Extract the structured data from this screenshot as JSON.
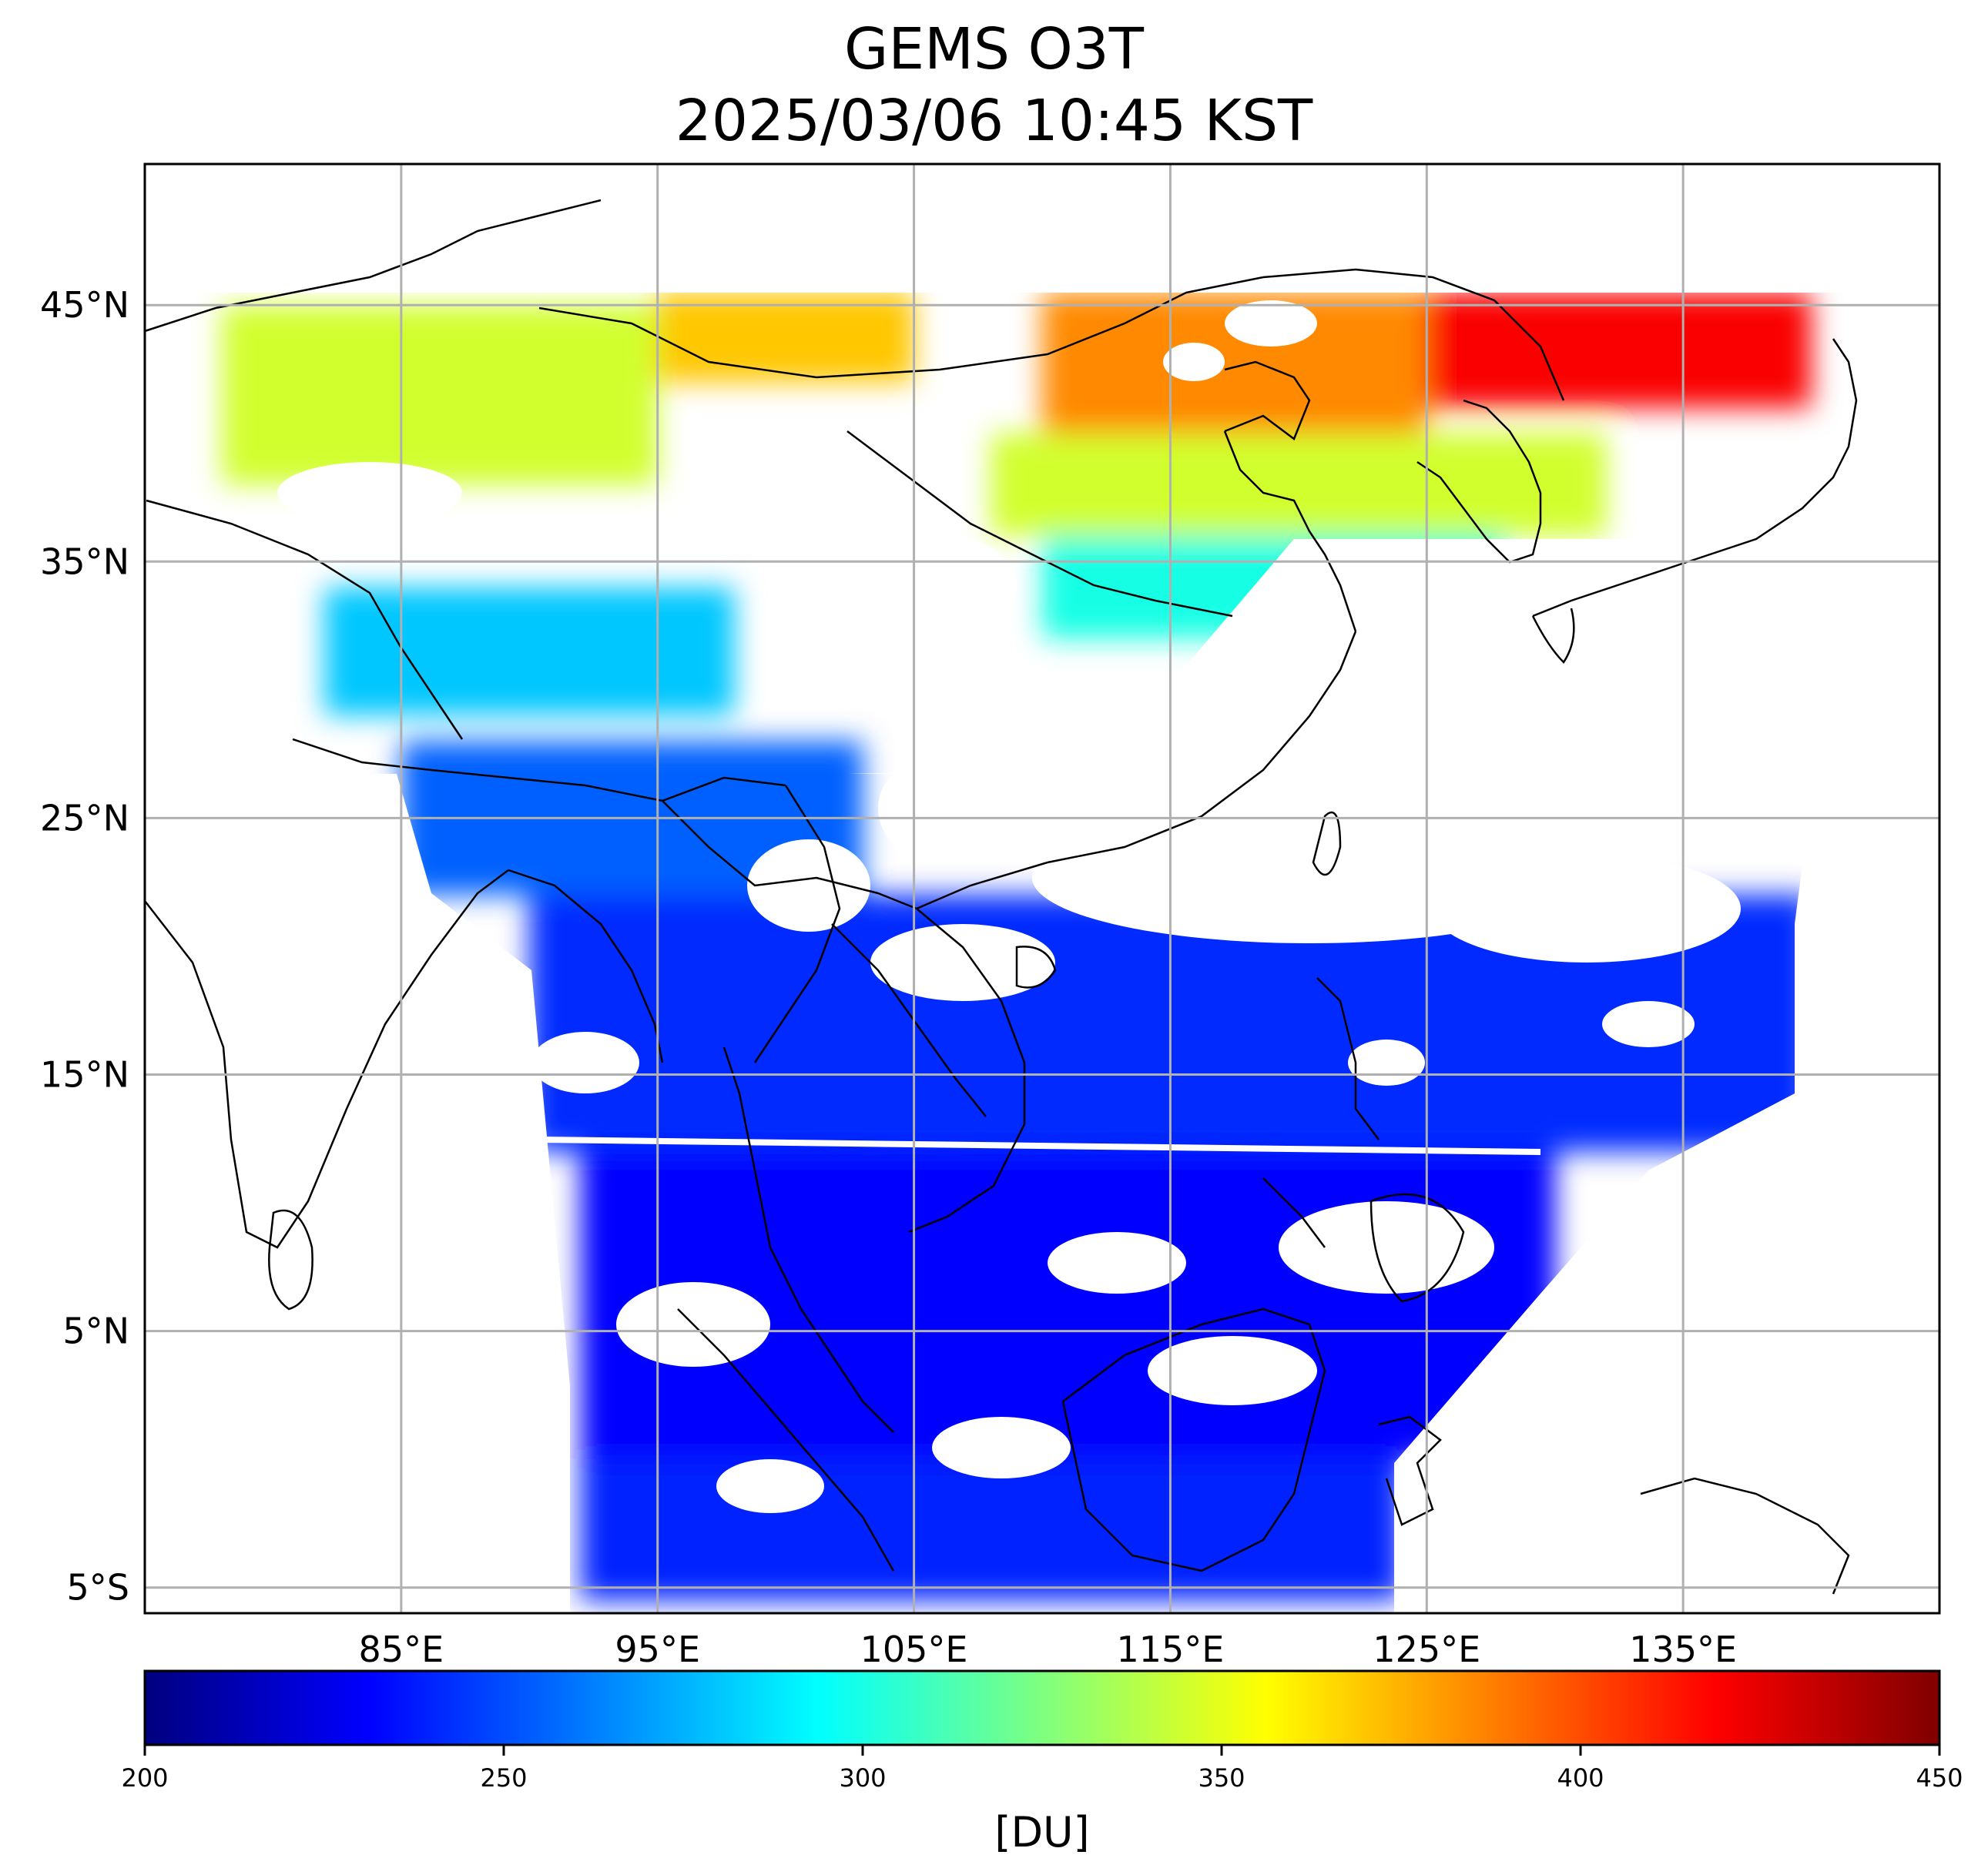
{
  "title": "GEMS O3T",
  "subtitle": "2025/03/06 10:45 KST",
  "map": {
    "lon_range": [
      75,
      145
    ],
    "lat_range": [
      -6,
      50.5
    ],
    "lat_ticks": [
      {
        "value": 45,
        "label": "45°N"
      },
      {
        "value": 35,
        "label": "35°N"
      },
      {
        "value": 25,
        "label": "25°N"
      },
      {
        "value": 15,
        "label": "15°N"
      },
      {
        "value": 5,
        "label": "5°N"
      },
      {
        "value": -5,
        "label": "5°S"
      }
    ],
    "lon_ticks": [
      {
        "value": 85,
        "label": "85°E"
      },
      {
        "value": 95,
        "label": "95°E"
      },
      {
        "value": 105,
        "label": "105°E"
      },
      {
        "value": 115,
        "label": "115°E"
      },
      {
        "value": 125,
        "label": "125°E"
      },
      {
        "value": 135,
        "label": "135°E"
      }
    ],
    "grid": true,
    "gridline_color": "#b0b0b0",
    "coastline_color": "#000000"
  },
  "colorbar": {
    "min": 200,
    "max": 450,
    "ticks": [
      "200",
      "250",
      "300",
      "350",
      "400",
      "450"
    ],
    "tick_values": [
      200,
      250,
      300,
      350,
      400,
      450
    ],
    "unit": "[DU]",
    "colormap": "jet",
    "stops": [
      "#00007f",
      "#0000ff",
      "#007fff",
      "#00ffff",
      "#7fff7f",
      "#ffff00",
      "#ff7f00",
      "#ff0000",
      "#7f0000"
    ]
  },
  "chart_data": {
    "type": "heatmap",
    "title": "GEMS O3T",
    "subtitle": "2025/03/06 10:45 KST",
    "xlabel": "",
    "ylabel": "",
    "xlim": [
      75,
      145
    ],
    "ylim": [
      -6,
      50.5
    ],
    "value_unit": "[DU]",
    "value_range": [
      200,
      450
    ],
    "regions": [
      {
        "lon_min": 118,
        "lon_max": 140,
        "lat_min": 41,
        "lat_max": 45.5,
        "value": 420
      },
      {
        "lon_min": 110,
        "lon_max": 125,
        "lat_min": 40,
        "lat_max": 45.5,
        "value": 385
      },
      {
        "lon_min": 95,
        "lon_max": 105,
        "lat_min": 42,
        "lat_max": 45.5,
        "value": 370
      },
      {
        "lon_min": 78,
        "lon_max": 95,
        "lat_min": 38,
        "lat_max": 45,
        "value": 345
      },
      {
        "lon_min": 108,
        "lon_max": 132,
        "lat_min": 36,
        "lat_max": 40,
        "value": 345
      },
      {
        "lon_min": 110,
        "lon_max": 128,
        "lat_min": 32,
        "lat_max": 36,
        "value": 300
      },
      {
        "lon_min": 82,
        "lon_max": 98,
        "lat_min": 29,
        "lat_max": 34,
        "value": 280
      },
      {
        "lon_min": 85,
        "lon_max": 103,
        "lat_min": 22,
        "lat_max": 28,
        "value": 255
      },
      {
        "lon_min": 90,
        "lon_max": 140,
        "lat_min": 12,
        "lat_max": 22,
        "value": 242
      },
      {
        "lon_min": 92,
        "lon_max": 130,
        "lat_min": 0,
        "lat_max": 12,
        "value": 232
      },
      {
        "lon_min": 92,
        "lon_max": 124,
        "lat_min": -5.5,
        "lat_max": 0,
        "value": 240
      }
    ]
  }
}
